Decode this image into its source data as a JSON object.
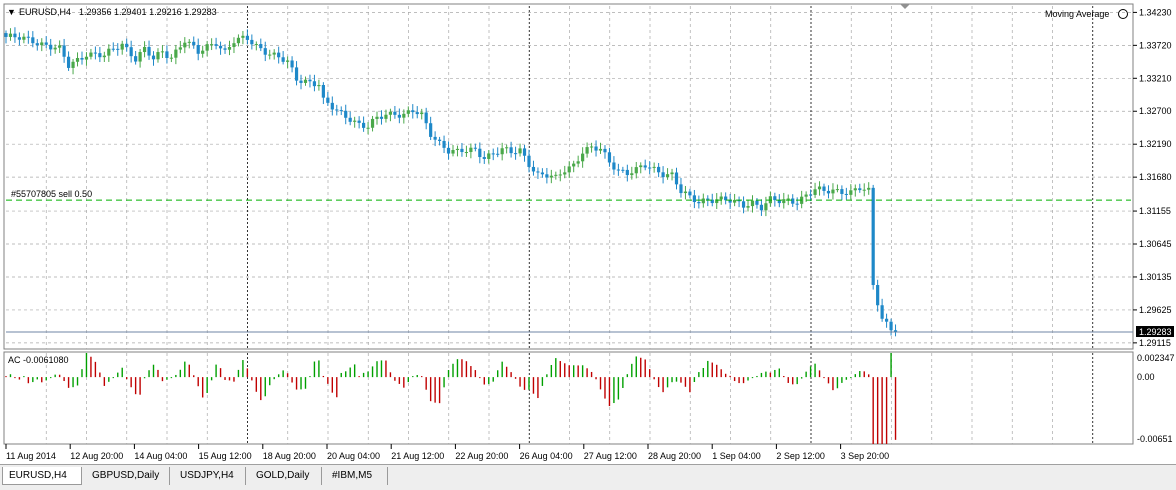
{
  "header": {
    "menu_marker": "▼",
    "symbol_text": "EURUSD,H4",
    "ohlc_text": "1.29356 1.29401 1.29216 1.29283",
    "indicator_label": "Moving Average"
  },
  "order_line": {
    "label": "#55707805 sell 0.50",
    "price": 1.31325,
    "color": "#00b000"
  },
  "current_price_label": "1.29283",
  "price_axis_ticks": [
    "1.34230",
    "1.33720",
    "1.33210",
    "1.32700",
    "1.32190",
    "1.31680",
    "1.31155",
    "1.30645",
    "1.30135",
    "1.29625",
    "1.29115"
  ],
  "ac_panel": {
    "label": "AC -0.0061080",
    "axis_ticks": [
      "0.002347",
      "0.00",
      "-0.00651"
    ],
    "up_color": "#00a000",
    "down_color": "#c00000"
  },
  "time_axis_labels": [
    "11 Aug 2014",
    "12 Aug 20:00",
    "14 Aug 04:00",
    "15 Aug 12:00",
    "18 Aug 20:00",
    "20 Aug 04:00",
    "21 Aug 12:00",
    "22 Aug 20:00",
    "26 Aug 04:00",
    "27 Aug 12:00",
    "28 Aug 20:00",
    "1 Sep 04:00",
    "2 Sep 12:00",
    "3 Sep 20:00"
  ],
  "tabs": [
    {
      "label": "EURUSD,H4",
      "active": true
    },
    {
      "label": "GBPUSD,Daily",
      "active": false
    },
    {
      "label": "USDJPY,H4",
      "active": false
    },
    {
      "label": "GOLD,Daily",
      "active": false
    },
    {
      "label": "#IBM,M5",
      "active": false
    }
  ],
  "chart_data": {
    "type": "candlestick",
    "symbol": "EURUSD",
    "timeframe": "H4",
    "bull_color": "#4aa84a",
    "bear_color": "#1e88c8",
    "ylim": [
      1.2902,
      1.3436
    ],
    "close_path": [
      [
        0,
        1.3385
      ],
      [
        6,
        1.338
      ],
      [
        12,
        1.3365
      ],
      [
        14,
        1.334
      ],
      [
        18,
        1.336
      ],
      [
        22,
        1.3355
      ],
      [
        26,
        1.3375
      ],
      [
        29,
        1.3352
      ],
      [
        31,
        1.3365
      ],
      [
        33,
        1.335
      ],
      [
        35,
        1.3362
      ],
      [
        37,
        1.3355
      ],
      [
        40,
        1.338
      ],
      [
        43,
        1.336
      ],
      [
        45,
        1.337
      ],
      [
        47,
        1.3378
      ],
      [
        49,
        1.3362
      ],
      [
        51,
        1.3378
      ],
      [
        54,
        1.3382
      ],
      [
        56,
        1.3372
      ],
      [
        59,
        1.336
      ],
      [
        61,
        1.3352
      ],
      [
        63,
        1.3345
      ],
      [
        65,
        1.332
      ],
      [
        67,
        1.3318
      ],
      [
        70,
        1.3312
      ],
      [
        71,
        1.3285
      ],
      [
        74,
        1.327
      ],
      [
        77,
        1.326
      ],
      [
        79,
        1.325
      ],
      [
        81,
        1.3245
      ],
      [
        83,
        1.3258
      ],
      [
        85,
        1.3265
      ],
      [
        87,
        1.3268
      ],
      [
        89,
        1.3265
      ],
      [
        91,
        1.327
      ],
      [
        93,
        1.3262
      ],
      [
        95,
        1.3235
      ],
      [
        97,
        1.3222
      ],
      [
        99,
        1.321
      ],
      [
        101,
        1.3206
      ],
      [
        103,
        1.3208
      ],
      [
        105,
        1.321
      ],
      [
        107,
        1.32
      ],
      [
        109,
        1.3205
      ],
      [
        111,
        1.321
      ],
      [
        113,
        1.3205
      ],
      [
        115,
        1.321
      ],
      [
        117,
        1.319
      ],
      [
        119,
        1.3172
      ],
      [
        121,
        1.317
      ],
      [
        123,
        1.3165
      ],
      [
        125,
        1.318
      ],
      [
        127,
        1.3188
      ],
      [
        129,
        1.3208
      ],
      [
        131,
        1.3212
      ],
      [
        133,
        1.321
      ],
      [
        135,
        1.3192
      ],
      [
        137,
        1.318
      ],
      [
        139,
        1.3175
      ],
      [
        141,
        1.3178
      ],
      [
        143,
        1.3185
      ],
      [
        145,
        1.318
      ],
      [
        147,
        1.3175
      ],
      [
        149,
        1.3172
      ],
      [
        151,
        1.3145
      ],
      [
        153,
        1.3135
      ],
      [
        155,
        1.313
      ],
      [
        157,
        1.3135
      ],
      [
        159,
        1.3134
      ],
      [
        161,
        1.3132
      ],
      [
        163,
        1.3128
      ],
      [
        165,
        1.3125
      ],
      [
        167,
        1.313
      ],
      [
        169,
        1.3122
      ],
      [
        171,
        1.3132
      ],
      [
        173,
        1.313
      ],
      [
        175,
        1.3132
      ],
      [
        177,
        1.3132
      ],
      [
        179,
        1.314
      ],
      [
        181,
        1.3148
      ],
      [
        183,
        1.3145
      ],
      [
        185,
        1.3148
      ],
      [
        187,
        1.3147
      ],
      [
        189,
        1.3145
      ],
      [
        191,
        1.315
      ],
      [
        193,
        1.3145
      ],
      [
        194,
        1.3
      ],
      [
        196,
        1.295
      ],
      [
        198,
        1.2935
      ],
      [
        199,
        1.2928
      ]
    ],
    "order_price": 1.31325,
    "current_price": 1.29283,
    "ac_indicator": {
      "label": "AC",
      "last_value": -0.006108,
      "ylim": [
        -0.00651,
        0.002347
      ]
    }
  }
}
